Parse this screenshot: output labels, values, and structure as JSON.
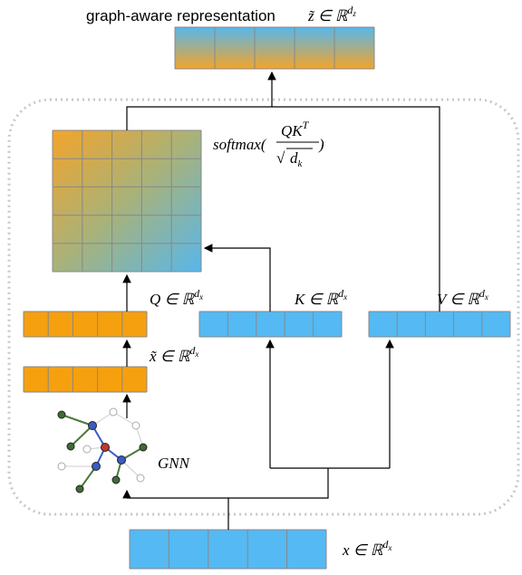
{
  "title": "graph-aware representation",
  "labels": {
    "z": {
      "base": "z̃ ∈ ℝ",
      "sup": "d",
      "sub": "z"
    },
    "q": {
      "base": "Q ∈ ℝ",
      "sup": "d",
      "sub": "x"
    },
    "k": {
      "base": "K ∈ ℝ",
      "sup": "d",
      "sub": "x"
    },
    "v": {
      "base": "V ∈ ℝ",
      "sup": "d",
      "sub": "x"
    },
    "xt": {
      "base": "x̃ ∈ ℝ",
      "sup": "d",
      "sub": "x"
    },
    "x": {
      "base": "x ∈ ℝ",
      "sup": "d",
      "sub": "x"
    }
  },
  "softmax": {
    "fn": "softmax(",
    "num": "QK",
    "sup": "T",
    "root": "√",
    "den": "d",
    "sub": "k",
    "close": ")"
  },
  "gnn": "GNN"
}
